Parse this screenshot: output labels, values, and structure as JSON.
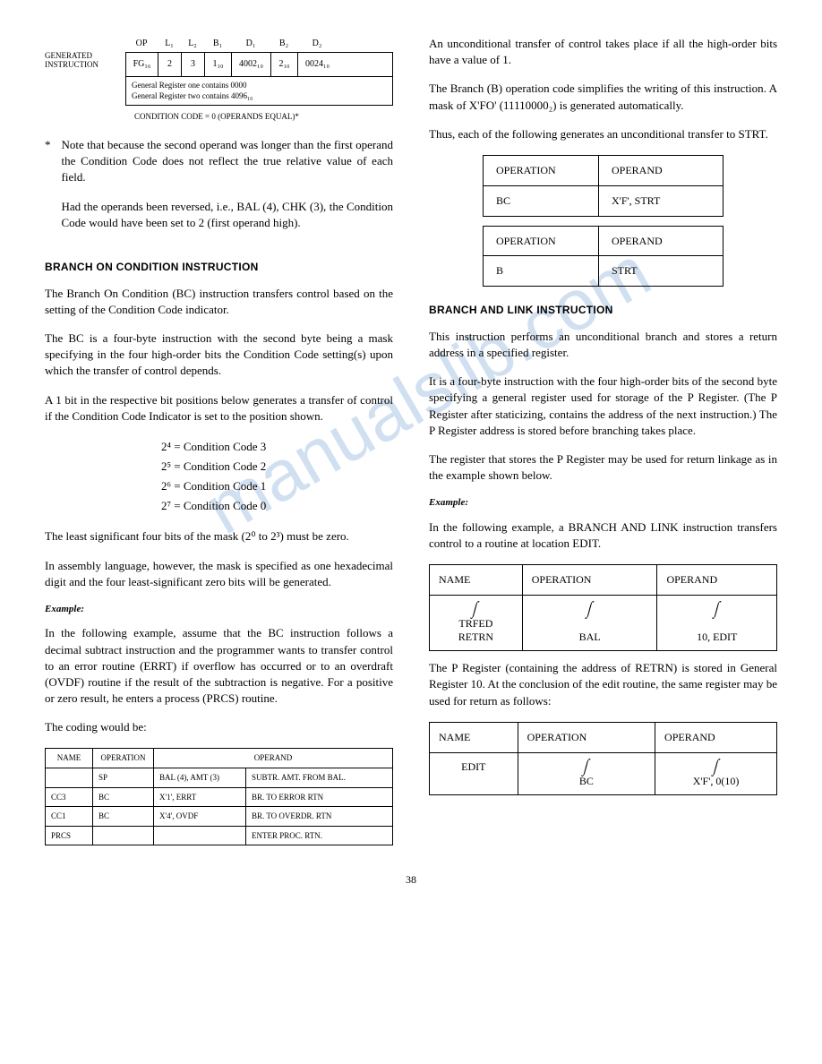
{
  "watermark_text": "manualslib.com",
  "gen_instruction": {
    "label": "GENERATED INSTRUCTION",
    "headers": [
      "OP",
      "L₁",
      "L₂",
      "B₁",
      "D₁",
      "B₂",
      "D₂"
    ],
    "cells": [
      "FG₁₆",
      "2",
      "3",
      "1₁₀",
      "4002₁₀",
      "2₁₀",
      "0024₁₀"
    ],
    "widths": [
      36,
      26,
      26,
      30,
      44,
      30,
      44
    ],
    "reg_note_1": "General Register one contains 0000",
    "reg_note_2": "General Register two contains 4096₁₀",
    "cond_note": "CONDITION CODE = 0 (OPERANDS EQUAL)*"
  },
  "star_note_1": "Note that because the second operand was longer than the first operand the Condition Code does not reflect the true relative value of each field.",
  "star_note_2": "Had the operands been reversed, i.e., BAL (4), CHK (3), the Condition Code would have been set to 2 (first operand high).",
  "heading_bc": "BRANCH ON CONDITION INSTRUCTION",
  "bc_p1": "The Branch On Condition (BC) instruction transfers control based on the setting of the Condition Code indicator.",
  "bc_p2": "The BC is a four-byte instruction with the second byte being a mask specifying in the four high-order bits the Condition Code setting(s) upon which the transfer of control depends.",
  "bc_p3": "A 1 bit in the respective bit positions below generates a transfer of control if the Condition Code Indicator is set to the position shown.",
  "cc_list": [
    "2⁴  =  Condition Code 3",
    "2⁵  =  Condition Code 2",
    "2⁶  =  Condition Code 1",
    "2⁷  =  Condition Code 0"
  ],
  "bc_p4": "The least significant four bits of the mask (2⁰ to 2³) must be zero.",
  "bc_p5": "In assembly language, however, the mask is specified as one hexadecimal digit and the four least-significant zero bits will be generated.",
  "example_label": "Example:",
  "bc_ex_p1": "In the following example, assume that the BC instruction follows a decimal subtract instruction and the programmer wants to transfer control to an error routine (ERRT) if overflow has occurred or to an overdraft (OVDF) routine if the result of the subtraction is negative. For a positive or zero result, he enters a process (PRCS) routine.",
  "bc_ex_p2": "The coding would be:",
  "coding_headers": [
    "NAME",
    "OPERATION",
    "OPERAND"
  ],
  "coding_rows": [
    [
      "",
      "SP",
      "BAL (4), AMT (3)",
      "SUBTR. AMT. FROM BAL."
    ],
    [
      "CC3",
      "BC",
      "X'1', ERRT",
      "BR. TO ERROR RTN"
    ],
    [
      "CC1",
      "BC",
      "X'4', OVDF",
      "BR. TO OVERDR. RTN"
    ],
    [
      "PRCS",
      "",
      "",
      "ENTER PROC. RTN."
    ]
  ],
  "rc_p1": "An unconditional transfer of control takes place if all the high-order bits have a value of 1.",
  "rc_p2": "The Branch (B) operation code simplifies the writing of this instruction. A mask of X'FO' (11110000₂) is generated automatically.",
  "rc_p3": "Thus, each of the following generates an unconditional transfer to STRT.",
  "op_tables": {
    "h_operation": "OPERATION",
    "h_operand": "OPERAND",
    "row1_op": "BC",
    "row1_opr": "X'F', STRT",
    "row2_op": "B",
    "row2_opr": "STRT"
  },
  "heading_bal": "BRANCH AND LINK INSTRUCTION",
  "bal_p1": "This instruction performs an unconditional branch and stores a return address in a specified register.",
  "bal_p2": "It is a four-byte instruction with the four high-order bits of the second byte specifying a general register used for storage of the P Register. (The P Register after staticizing, contains the address of the next instruction.) The P Register address is stored before branching takes place.",
  "bal_p3": "The register that stores the P Register may be used for return linkage as in the example shown below.",
  "bal_ex_p1": "In the following example, a BRANCH AND LINK instruction transfers control to a routine at location EDIT.",
  "bal_table1": {
    "headers": [
      "NAME",
      "OPERATION",
      "OPERAND"
    ],
    "name1": "TRFED",
    "name2": "RETRN",
    "op": "BAL",
    "operand": "10, EDIT"
  },
  "bal_p4": "The P Register (containing the address of RETRN) is stored in General Register 10. At the conclusion of the edit routine, the same register may be used for return as follows:",
  "bal_table2": {
    "headers": [
      "NAME",
      "OPERATION",
      "OPERAND"
    ],
    "name": "EDIT",
    "op": "BC",
    "operand": "X'F', 0(10)"
  },
  "page_number": "38"
}
